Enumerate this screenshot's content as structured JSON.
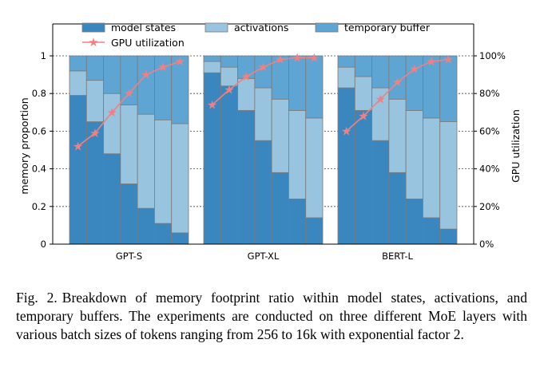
{
  "chart_data": {
    "type": "bar",
    "stacked": true,
    "groups": [
      "GPT-S",
      "GPT-XL",
      "BERT-L"
    ],
    "bars_per_group": 7,
    "series": [
      {
        "name": "model states",
        "color": "#3a87c0",
        "values": [
          [
            0.79,
            0.65,
            0.48,
            0.32,
            0.19,
            0.11,
            0.06
          ],
          [
            0.91,
            0.84,
            0.71,
            0.55,
            0.38,
            0.24,
            0.14
          ],
          [
            0.83,
            0.71,
            0.55,
            0.38,
            0.24,
            0.14,
            0.08
          ]
        ]
      },
      {
        "name": "activations",
        "color": "#98c4e0",
        "values": [
          [
            0.13,
            0.22,
            0.32,
            0.42,
            0.5,
            0.55,
            0.58
          ],
          [
            0.06,
            0.1,
            0.17,
            0.28,
            0.39,
            0.47,
            0.53
          ],
          [
            0.11,
            0.18,
            0.28,
            0.39,
            0.47,
            0.53,
            0.57
          ]
        ]
      },
      {
        "name": "temporary buffer",
        "color": "#5ea5d3",
        "values": [
          [
            0.08,
            0.13,
            0.2,
            0.26,
            0.31,
            0.34,
            0.36
          ],
          [
            0.03,
            0.06,
            0.12,
            0.17,
            0.23,
            0.29,
            0.33
          ],
          [
            0.06,
            0.11,
            0.17,
            0.23,
            0.29,
            0.33,
            0.35
          ]
        ]
      }
    ],
    "line": {
      "name": "GPU utilization",
      "color": "#f28080",
      "values": [
        [
          52,
          59,
          70,
          80,
          90,
          94,
          97
        ],
        [
          74,
          82,
          89,
          94,
          98,
          99,
          99
        ],
        [
          60,
          68,
          77,
          86,
          93,
          97,
          98
        ]
      ]
    },
    "left_axis": {
      "label": "memory proportion",
      "ylim": [
        0,
        1
      ],
      "ticks": [
        "0",
        "0.2",
        "0.4",
        "0.6",
        "0.8",
        "1"
      ]
    },
    "right_axis": {
      "label": "GPU utilization",
      "ylim": [
        0,
        100
      ],
      "ticks": [
        "0%",
        "20%",
        "40%",
        "60%",
        "80%",
        "100%"
      ]
    },
    "grid": "dashed horizontal",
    "legend_position": "top"
  },
  "caption": {
    "label": "Fig. 2.",
    "text": "Breakdown of memory footprint ratio within model states, activations, and temporary buffers. The experiments are conducted on three different MoE layers with various batch sizes of tokens ranging from 256 to 16k with exponential factor 2."
  }
}
